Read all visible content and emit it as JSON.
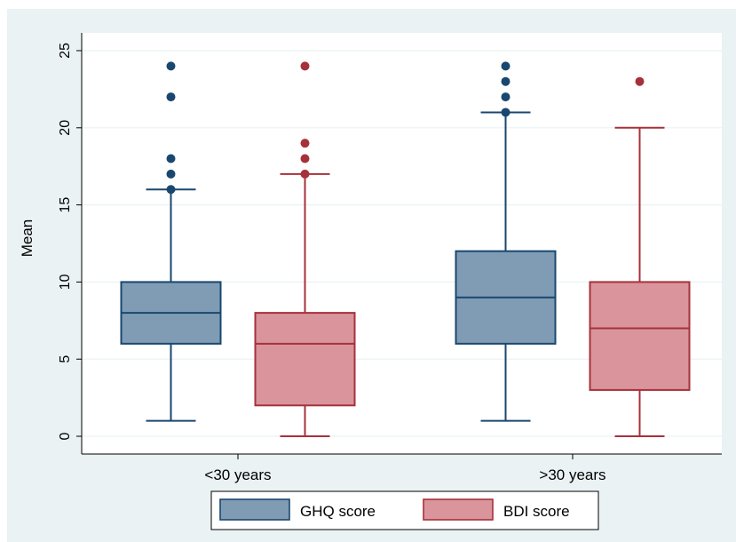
{
  "chart_data": {
    "type": "box",
    "ylabel": "Mean",
    "ylim": [
      -1,
      26
    ],
    "yticks": [
      0,
      5,
      10,
      15,
      20,
      25
    ],
    "grid": true,
    "legend_position": "bottom",
    "categories": [
      "<30 years",
      ">30 years"
    ],
    "series": [
      {
        "name": "GHQ score",
        "color": "#7f9cb4",
        "edge_color": "#1a476f",
        "boxes": [
          {
            "whisker_low": 1,
            "q1": 6,
            "median": 8,
            "q3": 10,
            "whisker_high": 16,
            "outliers": [
              16,
              17,
              18,
              22,
              24
            ]
          },
          {
            "whisker_low": 1,
            "q1": 6,
            "median": 9,
            "q3": 12,
            "whisker_high": 21,
            "outliers": [
              21,
              22,
              23,
              24
            ]
          }
        ]
      },
      {
        "name": "BDI score",
        "color": "#d9959b",
        "edge_color": "#a7313b",
        "boxes": [
          {
            "whisker_low": 0,
            "q1": 2,
            "median": 6,
            "q3": 8,
            "whisker_high": 17,
            "outliers": [
              17,
              18,
              19,
              24
            ]
          },
          {
            "whisker_low": 0,
            "q1": 3,
            "median": 7,
            "q3": 10,
            "whisker_high": 20,
            "outliers": [
              23
            ]
          }
        ]
      }
    ]
  }
}
